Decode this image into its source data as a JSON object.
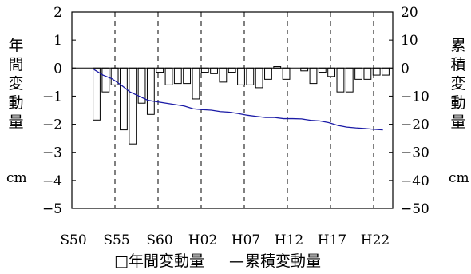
{
  "chart_data": {
    "type": "bar",
    "title": "",
    "x_tick_labels": [
      "S50",
      "S55",
      "S60",
      "H02",
      "H07",
      "H12",
      "H17",
      "H22"
    ],
    "left_axis": {
      "label": "年間変動量",
      "unit": "cm",
      "ylim": [
        -5,
        2
      ],
      "ticks": [
        "2",
        "1",
        "0",
        "−1",
        "−2",
        "−3",
        "−4",
        "−5"
      ]
    },
    "right_axis": {
      "label": "累積変動量",
      "unit": "cm",
      "ylim": [
        -50,
        20
      ],
      "ticks": [
        "20",
        "10",
        "0",
        "−10",
        "−20",
        "−30",
        "−40",
        "−50"
      ]
    },
    "legend": {
      "bar_symbol": "□",
      "bar_label": "年間変動量",
      "line_symbol": "—",
      "line_label": "累積変動量",
      "placement": "bottom"
    },
    "grid": "vertical-dashed",
    "line_color": "#1a1aa6",
    "series": [
      {
        "name": "年間変動量",
        "type": "bar",
        "axis": "left",
        "values": [
          -1.85,
          -0.85,
          -0.6,
          -2.2,
          -2.7,
          -1.25,
          -1.65,
          -0.15,
          -0.6,
          -0.55,
          -0.55,
          -1.1,
          -0.15,
          -0.2,
          -0.5,
          -0.15,
          -0.6,
          -0.6,
          -0.7,
          -0.4,
          0.05,
          -0.4,
          0.0,
          -0.1,
          -0.55,
          -0.15,
          -0.3,
          -0.85,
          -0.85,
          -0.4,
          -0.4,
          -0.25,
          -0.25
        ]
      },
      {
        "name": "累積変動量",
        "type": "line",
        "axis": "right",
        "values": [
          -0.5,
          -2.5,
          -3.8,
          -6.0,
          -8.5,
          -10.0,
          -11.5,
          -12.0,
          -12.5,
          -13.0,
          -13.5,
          -14.5,
          -14.8,
          -15.0,
          -15.5,
          -15.7,
          -16.2,
          -16.8,
          -17.2,
          -17.6,
          -17.6,
          -18.0,
          -18.0,
          -18.1,
          -18.6,
          -18.8,
          -19.4,
          -20.4,
          -21.0,
          -21.3,
          -21.5,
          -21.8,
          -22.0
        ]
      }
    ]
  }
}
